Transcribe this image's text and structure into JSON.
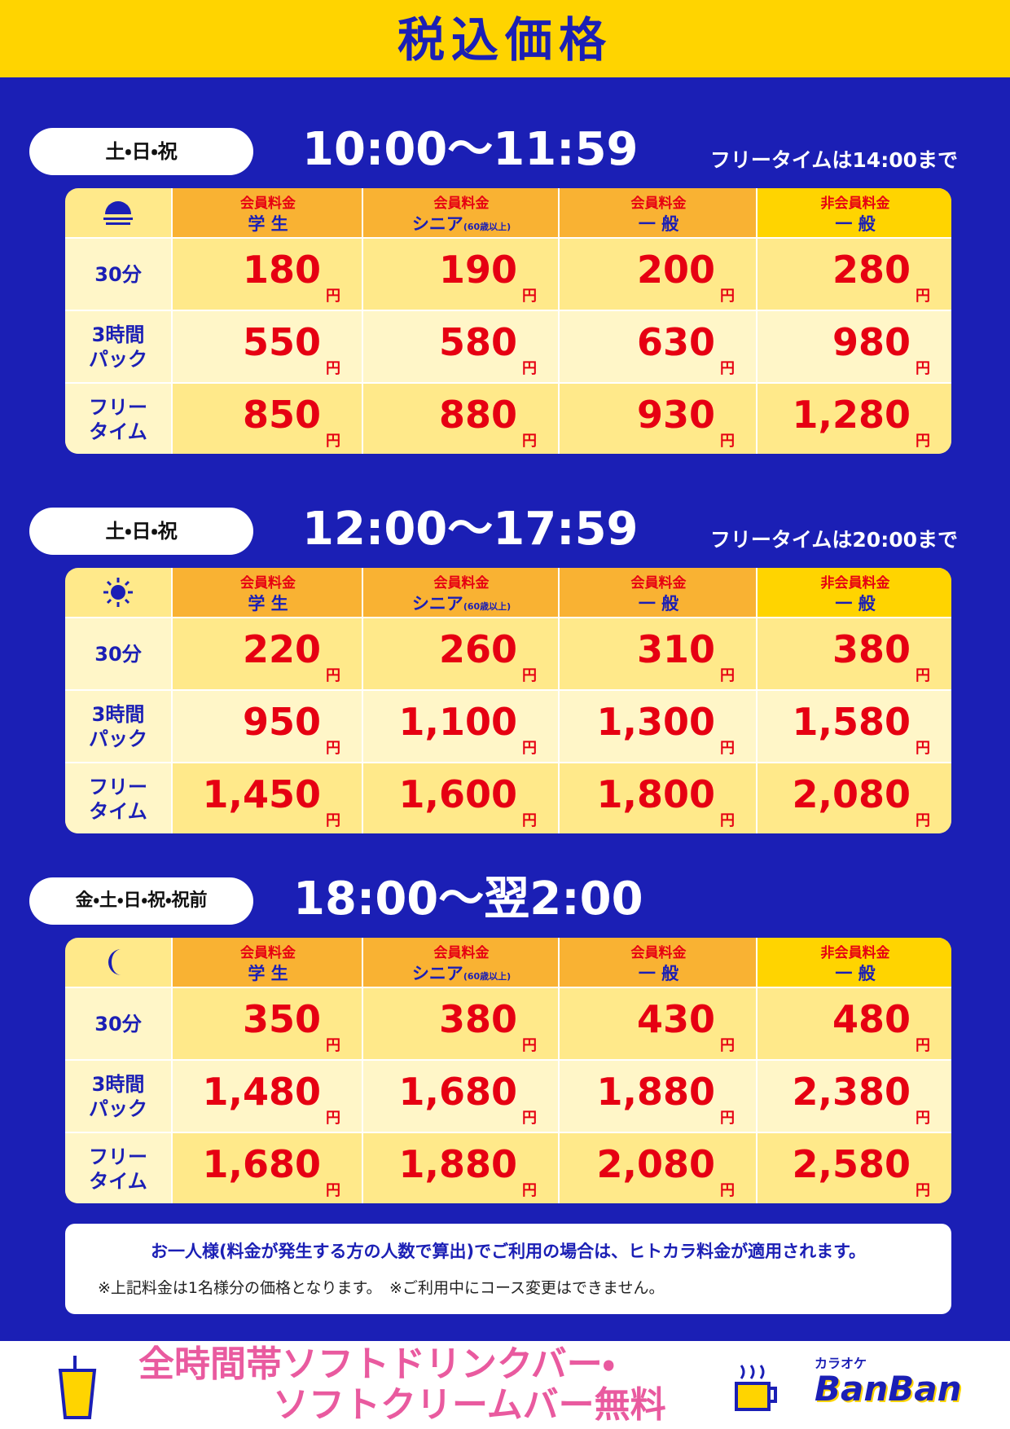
{
  "header": {
    "title": "税込価格"
  },
  "columns": [
    {
      "type": "会員料金",
      "name": "学 生"
    },
    {
      "type": "会員料金",
      "name": "シニア",
      "sub": "(60歳以上)"
    },
    {
      "type": "会員料金",
      "name": "一 般"
    },
    {
      "type": "非会員料金",
      "name": "一 般"
    }
  ],
  "row_labels": [
    [
      "30分"
    ],
    [
      "3時間",
      "パック"
    ],
    [
      "フリー",
      "タイム"
    ]
  ],
  "unit": "円",
  "sections": [
    {
      "days": "土・日・祝",
      "time": "10:00〜11:59",
      "note": "フリータイムは14:00まで",
      "prices": [
        [
          "180",
          "190",
          "200",
          "280"
        ],
        [
          "550",
          "580",
          "630",
          "980"
        ],
        [
          "850",
          "880",
          "930",
          "1,280"
        ]
      ]
    },
    {
      "days": "土・日・祝",
      "time": "12:00〜17:59",
      "note": "フリータイムは20:00まで",
      "prices": [
        [
          "220",
          "260",
          "310",
          "380"
        ],
        [
          "950",
          "1,100",
          "1,300",
          "1,580"
        ],
        [
          "1,450",
          "1,600",
          "1,800",
          "2,080"
        ]
      ]
    },
    {
      "days": "金・土・日・祝・祝前",
      "time": "18:00〜翌2:00",
      "prices": [
        [
          "350",
          "380",
          "430",
          "480"
        ],
        [
          "1,480",
          "1,680",
          "1,880",
          "2,380"
        ],
        [
          "1,680",
          "1,880",
          "2,080",
          "2,580"
        ]
      ]
    }
  ],
  "notice": {
    "line1": "お一人様(料金が発生する方の人数で算出)でご利用の場合は、ヒトカラ料金が適用されます。",
    "line2": "※上記料金は1名様分の価格となります。　※ご利用中にコース変更はできません。"
  },
  "footer": {
    "lines": [
      "全時間帯ソフトドリンクバー・",
      "ソフトクリームバー無料"
    ],
    "logo_small": "カラオケ",
    "logo": "BanBan"
  }
}
